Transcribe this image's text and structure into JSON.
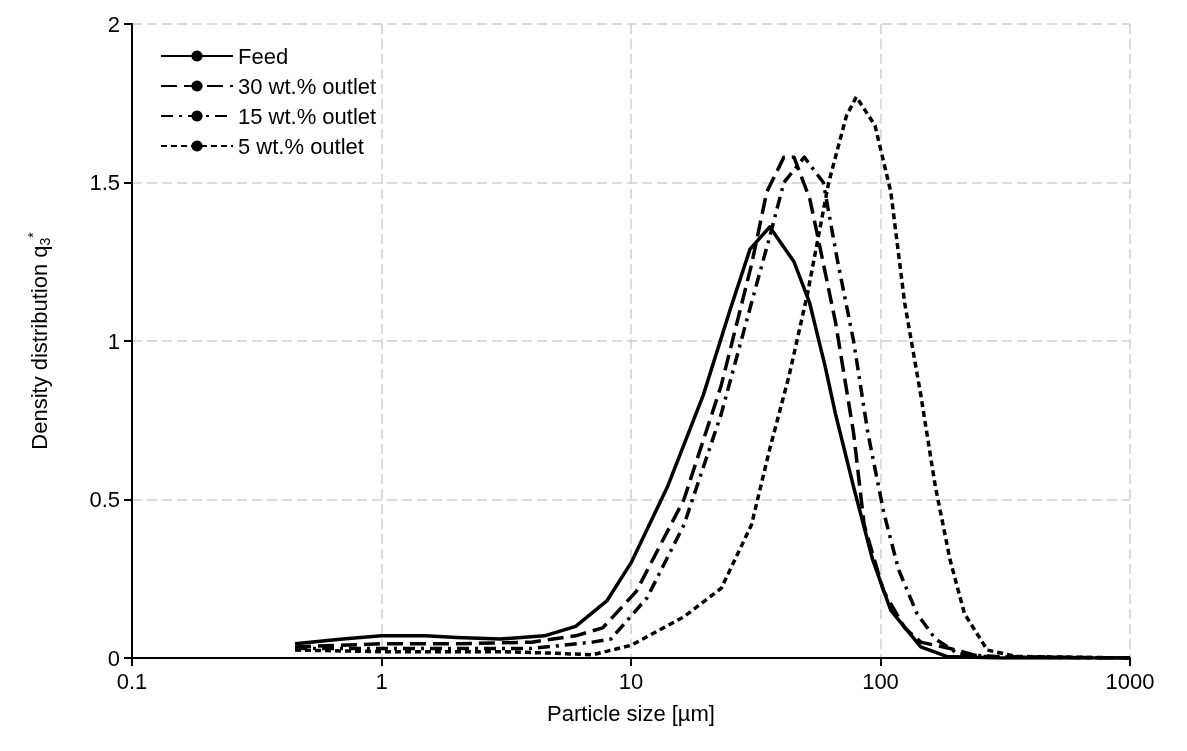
{
  "chart_data": {
    "type": "line",
    "xlabel": "Particle size [µm]",
    "ylabel": "Density distribution q$_{3}$$^{*}$",
    "log": "x",
    "xlim": [
      0.1,
      1000
    ],
    "xticks": [
      0.1,
      1,
      10,
      100,
      1000
    ],
    "ylim": [
      0,
      2
    ],
    "yticks": [
      0,
      0.5,
      1,
      1.5,
      2
    ],
    "grid": true,
    "legend": "top left",
    "marker": "none",
    "series": [
      {
        "name": "Feed",
        "color": "#000000",
        "line_style": "solid",
        "x": [
          0.45,
          0.7,
          1,
          1.5,
          2,
          3,
          4.5,
          6,
          8,
          10,
          14,
          19.5,
          25,
          30,
          36,
          45,
          52,
          60,
          66,
          78,
          93,
          110,
          145,
          184,
          300,
          1000
        ],
        "values": [
          0.045,
          0.06,
          0.07,
          0.07,
          0.065,
          0.06,
          0.07,
          0.1,
          0.18,
          0.3,
          0.54,
          0.83,
          1.1,
          1.29,
          1.36,
          1.25,
          1.12,
          0.92,
          0.77,
          0.54,
          0.31,
          0.15,
          0.035,
          0.005,
          0,
          0
        ]
      },
      {
        "name": "30 wt.% outlet",
        "color": "#000000",
        "line_style": "dashed",
        "x": [
          0.45,
          1,
          2,
          4,
          6,
          7.7,
          10.5,
          16.3,
          23,
          30.4,
          35,
          41,
          45,
          52,
          55,
          66,
          78,
          86,
          103,
          125,
          145,
          190,
          250,
          1000
        ],
        "values": [
          0.035,
          0.045,
          0.045,
          0.05,
          0.07,
          0.095,
          0.21,
          0.5,
          0.86,
          1.24,
          1.47,
          1.58,
          1.58,
          1.45,
          1.36,
          1.06,
          0.71,
          0.42,
          0.21,
          0.095,
          0.05,
          0.03,
          0.005,
          0
        ]
      },
      {
        "name": "15 wt.% outlet",
        "color": "#000000",
        "line_style": "dashdot",
        "x": [
          0.45,
          1,
          2,
          4,
          7,
          8.3,
          11.6,
          16.3,
          23,
          30.4,
          36,
          41,
          49.5,
          59,
          67,
          78,
          89,
          103,
          118,
          140,
          166,
          205,
          300,
          1000
        ],
        "values": [
          0.03,
          0.03,
          0.03,
          0.03,
          0.05,
          0.06,
          0.19,
          0.42,
          0.77,
          1.12,
          1.33,
          1.5,
          1.58,
          1.5,
          1.26,
          1.0,
          0.71,
          0.46,
          0.28,
          0.14,
          0.06,
          0.013,
          0.003,
          0
        ]
      },
      {
        "name": "5 wt.% outlet",
        "color": "#000000",
        "line_style": "dotted",
        "x": [
          0.45,
          1,
          3,
          5,
          7,
          10,
          16.3,
          23,
          30.4,
          36,
          43,
          51,
          62,
          73,
          80,
          95,
          110,
          125,
          145,
          166,
          190,
          217,
          268,
          350,
          1000
        ],
        "values": [
          0.025,
          0.02,
          0.02,
          0.015,
          0.01,
          0.04,
          0.13,
          0.22,
          0.42,
          0.66,
          0.89,
          1.15,
          1.5,
          1.71,
          1.77,
          1.68,
          1.47,
          1.12,
          0.83,
          0.54,
          0.31,
          0.14,
          0.025,
          0.005,
          0
        ]
      }
    ]
  }
}
